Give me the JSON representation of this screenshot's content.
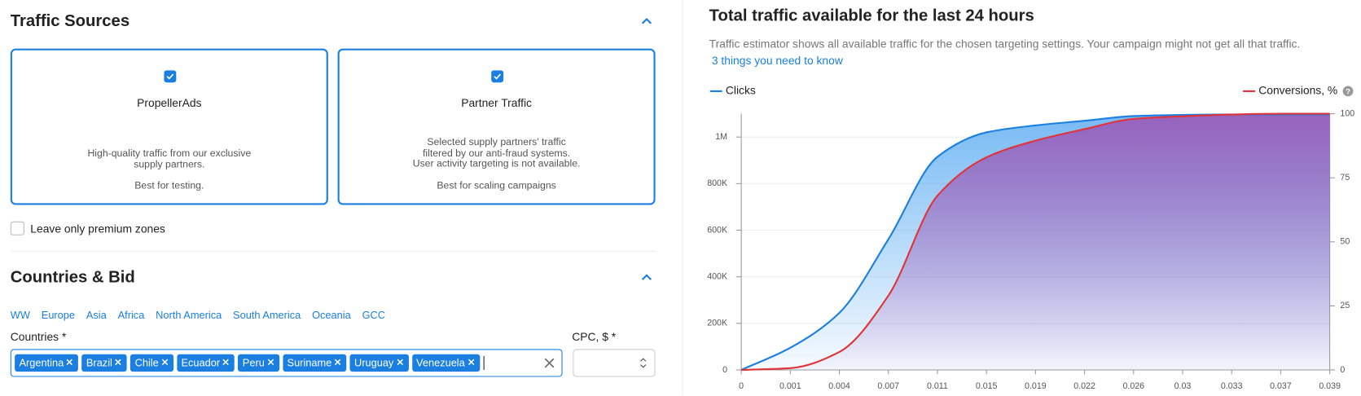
{
  "traffic_sources": {
    "title": "Traffic Sources",
    "cards": [
      {
        "name": "PropellerAds",
        "description": "High-quality traffic from our exclusive supply partners.",
        "note": "Best for testing."
      },
      {
        "name": "Partner Traffic",
        "description": "Selected supply partners' traffic filtered by our anti-fraud systems. User activity targeting is not available.",
        "note": "Best for scaling campaigns"
      }
    ],
    "premium_label": "Leave only premium zones"
  },
  "countries_bid": {
    "title": "Countries & Bid",
    "regions": [
      "WW",
      "Europe",
      "Asia",
      "Africa",
      "North America",
      "South America",
      "Oceania",
      "GCC"
    ],
    "countries_label": "Countries *",
    "countries": [
      "Argentina",
      "Brazil",
      "Chile",
      "Ecuador",
      "Peru",
      "Suriname",
      "Uruguay",
      "Venezuela"
    ],
    "cpc_label": "CPC, $ *"
  },
  "chart_data": {
    "type": "line",
    "title": "Total traffic available for the last 24 hours",
    "subtitle": "Traffic estimator shows all available traffic for the chosen targeting settings. Your campaign might not get all that traffic.",
    "link": "3 things you need to know",
    "categories": [
      "0",
      "0.001",
      "0.004",
      "0.007",
      "0.011",
      "0.015",
      "0.019",
      "0.022",
      "0.026",
      "0.03",
      "0.033",
      "0.037",
      "0.039"
    ],
    "series": [
      {
        "name": "Clicks",
        "color": "#1a7fe0",
        "fill": "#4aa3f0",
        "values": [
          0,
          95000,
          245000,
          561000,
          915000,
          1020000,
          1050000,
          1070000,
          1090000,
          1095000,
          1097000,
          1097000,
          1097000
        ]
      },
      {
        "name": "Conversions, %",
        "color": "#e0333a",
        "fill": "#9b59b6",
        "axis": "y2",
        "values": [
          0,
          0.7,
          7,
          29,
          68,
          83,
          89.5,
          94,
          98,
          99,
          99.7,
          100,
          100
        ]
      }
    ],
    "ylim": [
      0,
      1100000
    ],
    "yticks": [
      0,
      {
        "value": 200000,
        "label": "200K"
      },
      {
        "value": 400000,
        "label": "400K"
      },
      {
        "value": 600000,
        "label": "600K"
      },
      {
        "value": 800000,
        "label": "800K"
      },
      {
        "value": 1000000,
        "label": "1M"
      }
    ],
    "y2lim": [
      0,
      100
    ],
    "y2ticks": [
      0,
      25,
      50,
      75,
      100
    ],
    "grid": true
  }
}
